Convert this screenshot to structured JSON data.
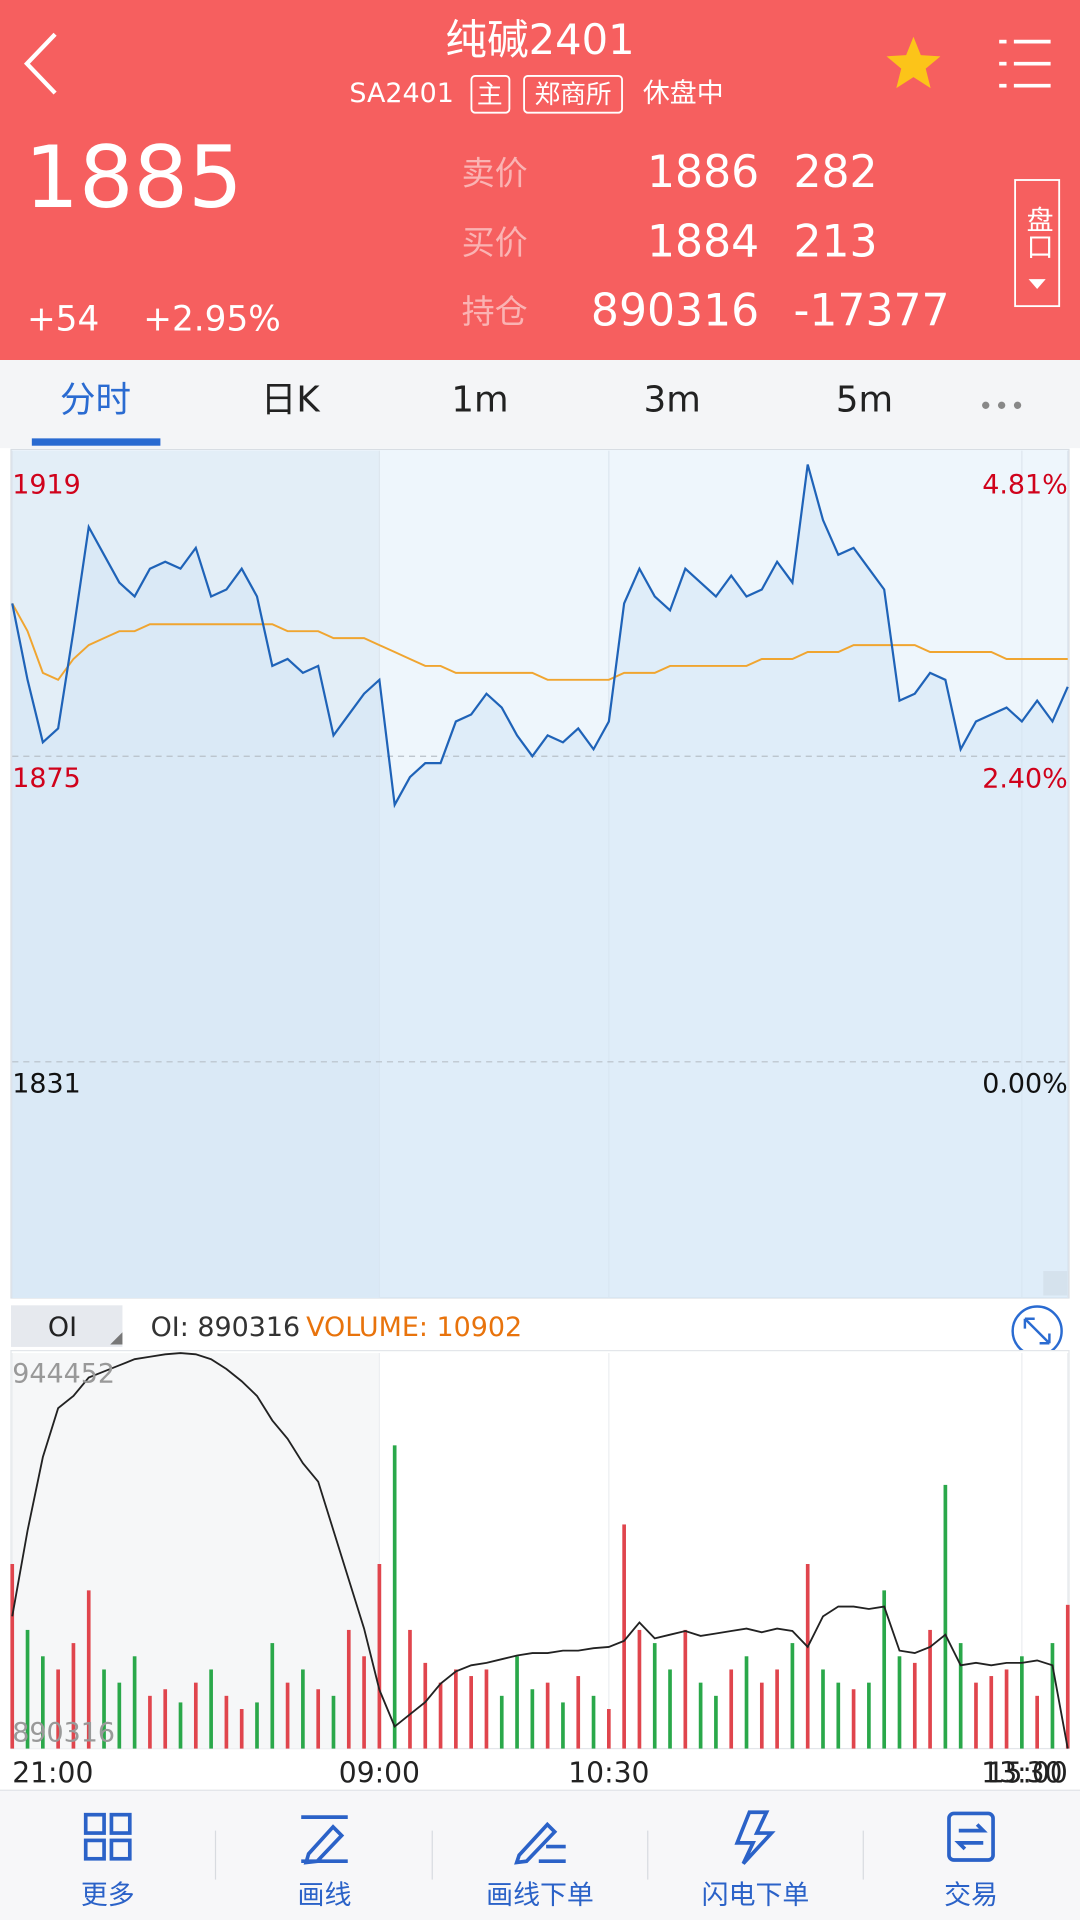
{
  "header": {
    "title": "纯碱2401",
    "code": "SA2401",
    "tags": [
      "主",
      "郑商所"
    ],
    "status": "休盘中"
  },
  "quote": {
    "last": "1885",
    "change": "+54",
    "change_pct": "+2.95%",
    "book": [
      {
        "label": "卖价",
        "price": "1886",
        "volume": "282"
      },
      {
        "label": "买价",
        "price": "1884",
        "volume": "213"
      },
      {
        "label": "持仓",
        "price": "890316",
        "volume": "-17377"
      }
    ],
    "panel_button": "盘口"
  },
  "tabs": {
    "items": [
      "分时",
      "日K",
      "1m",
      "3m",
      "5m"
    ],
    "active": 0
  },
  "chart_data": [
    {
      "type": "line",
      "ylim": [
        1797,
        1919
      ],
      "yticks": [
        1919,
        1875,
        1831
      ],
      "y2lim": [
        -1.86,
        4.81
      ],
      "y2ticks": [
        {
          "value": 4.81,
          "label": "4.81%"
        },
        {
          "value": 2.4,
          "label": "2.40%"
        },
        {
          "value": 0,
          "label": "0.00%"
        }
      ],
      "xlim": [
        0,
        69
      ],
      "grid": true,
      "up_color": "#d0021b",
      "series": [
        {
          "color": "#1f63b8",
          "fill": "#d3e6f5",
          "values": [
            1897,
            1886,
            1877,
            1879,
            1893,
            1908,
            1904,
            1900,
            1898,
            1902,
            1903,
            1902,
            1905,
            1898,
            1899,
            1902,
            1898,
            1888,
            1889,
            1887,
            1888,
            1878,
            1881,
            1884,
            1886,
            1868,
            1872,
            1874,
            1874,
            1880,
            1881,
            1884,
            1882,
            1878,
            1875,
            1878,
            1877,
            1879,
            1876,
            1880,
            1897,
            1902,
            1898,
            1896,
            1902,
            1900,
            1898,
            1901,
            1898,
            1899,
            1903,
            1900,
            1917,
            1909,
            1904,
            1905,
            1902,
            1899,
            1883,
            1884,
            1887,
            1886,
            1876,
            1880,
            1881,
            1882,
            1880,
            1883,
            1880,
            1885
          ]
        },
        {
          "color": "#f0a530",
          "values": [
            1897,
            1893,
            1887,
            1886,
            1889,
            1891,
            1892,
            1893,
            1893,
            1894,
            1894,
            1894,
            1894,
            1894,
            1894,
            1894,
            1894,
            1894,
            1893,
            1893,
            1893,
            1892,
            1892,
            1892,
            1891,
            1890,
            1889,
            1888,
            1888,
            1887,
            1887,
            1887,
            1887,
            1887,
            1887,
            1886,
            1886,
            1886,
            1886,
            1886,
            1887,
            1887,
            1887,
            1888,
            1888,
            1888,
            1888,
            1888,
            1888,
            1889,
            1889,
            1889,
            1890,
            1890,
            1890,
            1891,
            1891,
            1891,
            1891,
            1891,
            1890,
            1890,
            1890,
            1890,
            1890,
            1889,
            1889,
            1889,
            1889,
            1889
          ]
        }
      ]
    },
    {
      "type": "combo",
      "legend_selector": "OI",
      "legend": [
        {
          "text": "OI: 890316",
          "color": "#333333"
        },
        {
          "text": "VOLUME: 10902",
          "color": "#e8730c"
        }
      ],
      "ylim": [
        890316,
        944452
      ],
      "yticks": [
        944452,
        890316
      ],
      "y2lim": [
        0,
        30000
      ],
      "xlim": [
        0,
        69
      ],
      "xticks": [
        {
          "value": 0,
          "label": "21:00"
        },
        {
          "value": 24,
          "label": "09:00"
        },
        {
          "value": 39,
          "label": "10:30"
        },
        {
          "value": 66,
          "label": "13:30"
        },
        {
          "value": 69,
          "label": "15:00"
        }
      ],
      "series": [
        {
          "type": "line",
          "color": "#222222",
          "values": [
            908417,
            920149,
            930205,
            936909,
            938585,
            941099,
            941937,
            942775,
            943613,
            943948,
            944283,
            944452,
            944283,
            943613,
            942272,
            940596,
            938585,
            935233,
            932719,
            929367,
            926853,
            920149,
            913445,
            906741,
            898361,
            893333,
            895009,
            896685,
            899199,
            900875,
            901713,
            902048,
            902551,
            903054,
            903389,
            903389,
            903724,
            903724,
            904059,
            904227,
            905065,
            907579,
            905400,
            905903,
            906406,
            905735,
            906070,
            906406,
            906741,
            906238,
            906741,
            906406,
            904227,
            908417,
            909758,
            909758,
            909422,
            909758,
            903724,
            903389,
            904227,
            905903,
            901713,
            902048,
            901713,
            902048,
            902048,
            902383,
            901713,
            890316
          ]
        },
        {
          "type": "bar",
          "axis": "y2",
          "up_color": "#e0454d",
          "down_color": "#2aa84a",
          "values": [
            14000,
            9000,
            7000,
            6000,
            8000,
            12000,
            6000,
            5000,
            7000,
            4000,
            4500,
            3500,
            5000,
            6000,
            4000,
            3000,
            3500,
            8000,
            5000,
            6000,
            4500,
            4000,
            9000,
            7000,
            14000,
            23000,
            9000,
            6500,
            5000,
            6000,
            5500,
            6000,
            4000,
            7000,
            4500,
            5000,
            3500,
            5500,
            4000,
            3000,
            17000,
            9000,
            8000,
            6000,
            9000,
            5000,
            4000,
            6000,
            7000,
            5000,
            6000,
            8000,
            14000,
            6000,
            5000,
            4500,
            5000,
            12000,
            7000,
            6500,
            9000,
            20000,
            8000,
            5000,
            5500,
            6000,
            7000,
            4000,
            8000,
            10902
          ]
        }
      ]
    }
  ],
  "nav": [
    "更多",
    "画线",
    "画线下单",
    "闪电下单",
    "交易"
  ]
}
